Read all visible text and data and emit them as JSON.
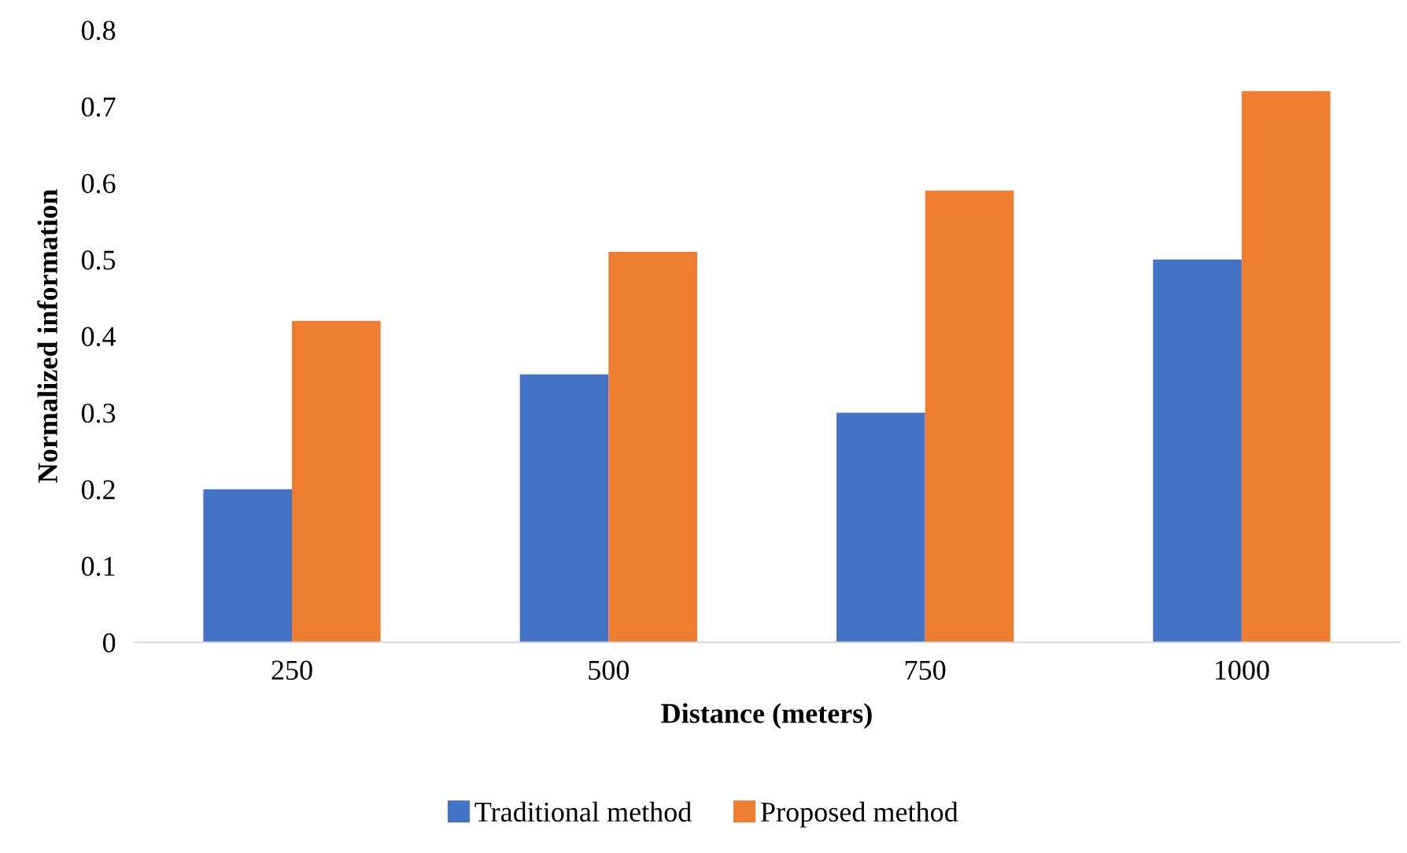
{
  "chart_data": {
    "type": "bar",
    "xlabel": "Distance (meters)",
    "ylabel": "Normalized information",
    "categories": [
      "250",
      "500",
      "750",
      "1000"
    ],
    "series": [
      {
        "name": "Traditional method",
        "color": "#4472c4",
        "values": [
          0.2,
          0.35,
          0.3,
          0.5
        ]
      },
      {
        "name": "Proposed method",
        "color": "#ed7d31",
        "values": [
          0.42,
          0.51,
          0.59,
          0.72
        ]
      }
    ],
    "ylim": [
      0,
      0.8
    ],
    "yticks": [
      0,
      0.1,
      0.2,
      0.3,
      0.4,
      0.5,
      0.6,
      0.7,
      0.8
    ],
    "grid": false,
    "legend": "bottom"
  }
}
